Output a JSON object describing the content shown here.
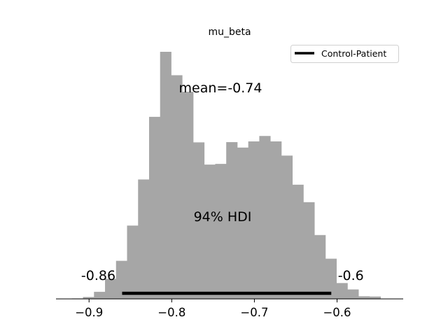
{
  "chart_data": {
    "type": "bar",
    "title": "mu_beta",
    "xlabel": "",
    "ylabel": "",
    "xlim": [
      -0.94,
      -0.52
    ],
    "bin_width": 0.01333,
    "bin_start": -0.9207,
    "bin_heights": [
      2,
      8,
      30,
      85,
      161,
      310,
      505,
      770,
      1045,
      946,
      876,
      662,
      568,
      571,
      663,
      640,
      666,
      689,
      666,
      606,
      483,
      409,
      270,
      170,
      67,
      40,
      11,
      10
    ],
    "xticks": [
      -0.9,
      -0.8,
      -0.7,
      -0.6
    ],
    "xtick_labels": [
      "−0.9",
      "−0.8",
      "−0.7",
      "−0.6"
    ],
    "bar_color": "#a6a6a6",
    "hdi": {
      "label": "94% HDI",
      "low": -0.86,
      "high": -0.607,
      "low_label": "-0.86",
      "high_label": "-0.6",
      "color": "#000000"
    },
    "mean_label": "mean=-0.74",
    "legend": {
      "placement": "upper-right",
      "entries": [
        {
          "name": "Control-Patient",
          "color": "#000000"
        }
      ]
    },
    "grid": false
  }
}
